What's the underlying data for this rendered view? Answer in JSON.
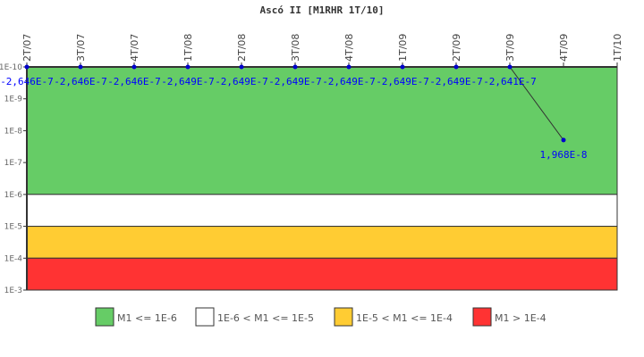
{
  "chart_data": {
    "type": "line",
    "title": "Ascó II [M1RHR 1T/10]",
    "categories": [
      "2T/07",
      "3T/07",
      "4T/07",
      "1T/08",
      "2T/08",
      "3T/08",
      "4T/08",
      "1T/09",
      "2T/09",
      "3T/09",
      "4T/09",
      "1T/10"
    ],
    "series": [
      {
        "values": [
          -2.646e-07,
          -2.646e-07,
          -2.646e-07,
          -2.649e-07,
          -2.649e-07,
          -2.649e-07,
          -2.649e-07,
          -2.649e-07,
          -2.649e-07,
          -2.641e-07,
          1.968e-08,
          null
        ],
        "labels": [
          "-2,646E-7",
          "-2,646E-7",
          "-2,646E-7",
          "-2,649E-7",
          "-2,649E-7",
          "-2,649E-7",
          "-2,649E-7",
          "-2,649E-7",
          "-2,649E-7",
          "-2,641E-7",
          "1,968E-8",
          ""
        ],
        "color": "#0000cc"
      }
    ],
    "y_scale": "log",
    "y_reversed": true,
    "ylim": [
      1e-10,
      0.001
    ],
    "y_ticks": [
      "1E-10",
      "1E-9",
      "1E-8",
      "1E-7",
      "1E-6",
      "1E-5",
      "1E-4",
      "1E-3"
    ],
    "bands": [
      {
        "from": 1e-10,
        "to": 1e-06,
        "color": "#66cc66",
        "label": "M1 <= 1E-6"
      },
      {
        "from": 1e-06,
        "to": 1e-05,
        "color": "#ffffff",
        "label": "1E-6 < M1 <= 1E-5"
      },
      {
        "from": 1e-05,
        "to": 0.0001,
        "color": "#ffcc33",
        "label": "1E-5 < M1 <= 1E-4"
      },
      {
        "from": 0.0001,
        "to": 0.001,
        "color": "#ff3333",
        "label": "M1 > 1E-4"
      }
    ],
    "legend_position": "bottom",
    "grid": false
  }
}
